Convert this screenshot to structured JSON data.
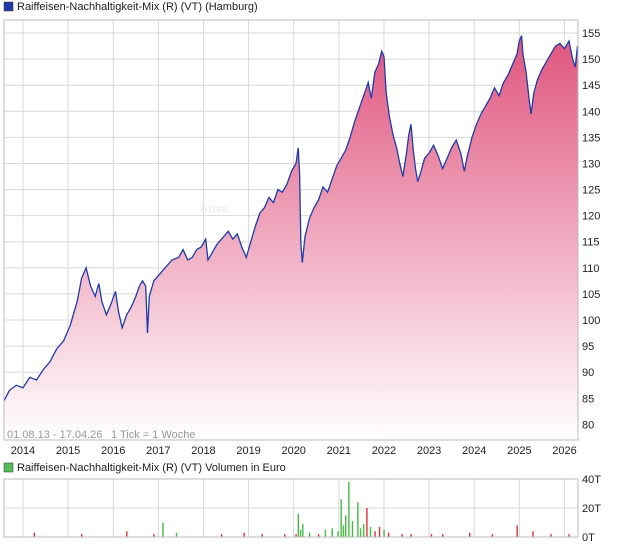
{
  "legend_main": {
    "label": "Raiffeisen-Nachhaltigkeit-Mix (R) (VT) (Hamburg)",
    "color": "#1f3aa8"
  },
  "legend_volume": {
    "label": "Raiffeisen-Nachhaltigkeit-Mix (R) (VT) Volumen in Euro",
    "color": "#55bb55"
  },
  "info": {
    "date_range": "01.08.13 - 17.04.26",
    "tick": "1 Tick = 1 Woche"
  },
  "watermark": "Ariva",
  "colors": {
    "line": "#1f3aa8",
    "fill_top": "#e0557f",
    "fill_bottom": "#ffffff",
    "vol_up": "#44bb44",
    "vol_down": "#dd3333",
    "grid": "#d8d8d8"
  },
  "chart_data": [
    {
      "type": "area",
      "y_ticks": [
        80,
        85,
        90,
        95,
        100,
        105,
        110,
        115,
        120,
        125,
        130,
        135,
        140,
        145,
        150,
        155
      ],
      "ylim": [
        77,
        157.5
      ],
      "x_ticks": [
        "2014",
        "2015",
        "2016",
        "2017",
        "2018",
        "2019",
        "2020",
        "2021",
        "2022",
        "2023",
        "2024",
        "2025",
        "2026"
      ],
      "xlim": [
        2013.58,
        2026.3
      ],
      "grid": true,
      "points": [
        [
          2013.58,
          84.5
        ],
        [
          2013.7,
          86.5
        ],
        [
          2013.85,
          87.5
        ],
        [
          2014.0,
          87.0
        ],
        [
          2014.15,
          89.0
        ],
        [
          2014.3,
          88.5
        ],
        [
          2014.45,
          90.5
        ],
        [
          2014.6,
          92.0
        ],
        [
          2014.75,
          94.5
        ],
        [
          2014.9,
          96.0
        ],
        [
          2015.05,
          99.0
        ],
        [
          2015.2,
          103.5
        ],
        [
          2015.3,
          108.0
        ],
        [
          2015.4,
          110.0
        ],
        [
          2015.5,
          106.5
        ],
        [
          2015.6,
          104.5
        ],
        [
          2015.68,
          107.0
        ],
        [
          2015.75,
          103.5
        ],
        [
          2015.85,
          101.0
        ],
        [
          2015.95,
          103.0
        ],
        [
          2016.05,
          105.5
        ],
        [
          2016.12,
          101.5
        ],
        [
          2016.2,
          98.5
        ],
        [
          2016.3,
          101.0
        ],
        [
          2016.4,
          102.5
        ],
        [
          2016.5,
          104.5
        ],
        [
          2016.58,
          106.5
        ],
        [
          2016.65,
          107.5
        ],
        [
          2016.72,
          106.5
        ],
        [
          2016.76,
          97.5
        ],
        [
          2016.8,
          104.5
        ],
        [
          2016.9,
          107.5
        ],
        [
          2017.0,
          108.5
        ],
        [
          2017.15,
          110.0
        ],
        [
          2017.3,
          111.5
        ],
        [
          2017.45,
          112.0
        ],
        [
          2017.55,
          113.5
        ],
        [
          2017.65,
          111.5
        ],
        [
          2017.75,
          112.0
        ],
        [
          2017.85,
          113.5
        ],
        [
          2017.95,
          114.0
        ],
        [
          2018.05,
          115.5
        ],
        [
          2018.1,
          111.5
        ],
        [
          2018.2,
          113.0
        ],
        [
          2018.3,
          114.5
        ],
        [
          2018.45,
          116.0
        ],
        [
          2018.55,
          117.0
        ],
        [
          2018.65,
          115.5
        ],
        [
          2018.75,
          116.5
        ],
        [
          2018.85,
          114.0
        ],
        [
          2018.95,
          112.0
        ],
        [
          2019.05,
          115.0
        ],
        [
          2019.15,
          118.0
        ],
        [
          2019.25,
          120.5
        ],
        [
          2019.35,
          121.5
        ],
        [
          2019.45,
          123.5
        ],
        [
          2019.55,
          122.5
        ],
        [
          2019.65,
          125.0
        ],
        [
          2019.75,
          124.5
        ],
        [
          2019.85,
          126.0
        ],
        [
          2019.95,
          128.5
        ],
        [
          2020.05,
          130.0
        ],
        [
          2020.1,
          133.0
        ],
        [
          2020.13,
          128.0
        ],
        [
          2020.16,
          114.5
        ],
        [
          2020.19,
          111.0
        ],
        [
          2020.25,
          116.0
        ],
        [
          2020.35,
          119.5
        ],
        [
          2020.45,
          121.5
        ],
        [
          2020.55,
          123.0
        ],
        [
          2020.65,
          125.5
        ],
        [
          2020.75,
          124.5
        ],
        [
          2020.85,
          127.0
        ],
        [
          2020.95,
          129.5
        ],
        [
          2021.05,
          131.0
        ],
        [
          2021.15,
          132.5
        ],
        [
          2021.25,
          135.0
        ],
        [
          2021.35,
          138.0
        ],
        [
          2021.45,
          140.5
        ],
        [
          2021.55,
          143.0
        ],
        [
          2021.65,
          145.5
        ],
        [
          2021.72,
          142.5
        ],
        [
          2021.8,
          147.5
        ],
        [
          2021.88,
          149.0
        ],
        [
          2021.95,
          151.5
        ],
        [
          2022.0,
          150.5
        ],
        [
          2022.05,
          143.5
        ],
        [
          2022.12,
          139.0
        ],
        [
          2022.2,
          135.5
        ],
        [
          2022.28,
          133.0
        ],
        [
          2022.35,
          130.0
        ],
        [
          2022.42,
          127.5
        ],
        [
          2022.5,
          132.0
        ],
        [
          2022.55,
          135.5
        ],
        [
          2022.6,
          137.5
        ],
        [
          2022.65,
          132.5
        ],
        [
          2022.7,
          129.0
        ],
        [
          2022.75,
          126.5
        ],
        [
          2022.82,
          128.5
        ],
        [
          2022.9,
          131.0
        ],
        [
          2023.0,
          132.0
        ],
        [
          2023.1,
          133.5
        ],
        [
          2023.2,
          131.5
        ],
        [
          2023.3,
          129.0
        ],
        [
          2023.4,
          131.0
        ],
        [
          2023.5,
          133.0
        ],
        [
          2023.6,
          134.5
        ],
        [
          2023.7,
          132.0
        ],
        [
          2023.78,
          128.5
        ],
        [
          2023.85,
          131.5
        ],
        [
          2023.95,
          135.0
        ],
        [
          2024.05,
          137.5
        ],
        [
          2024.15,
          139.5
        ],
        [
          2024.25,
          141.0
        ],
        [
          2024.35,
          142.5
        ],
        [
          2024.45,
          144.5
        ],
        [
          2024.55,
          143.0
        ],
        [
          2024.65,
          145.5
        ],
        [
          2024.75,
          147.0
        ],
        [
          2024.85,
          149.0
        ],
        [
          2024.95,
          151.0
        ],
        [
          2025.0,
          153.5
        ],
        [
          2025.05,
          154.5
        ],
        [
          2025.08,
          151.0
        ],
        [
          2025.15,
          147.5
        ],
        [
          2025.22,
          142.0
        ],
        [
          2025.26,
          139.5
        ],
        [
          2025.32,
          143.5
        ],
        [
          2025.4,
          146.0
        ],
        [
          2025.5,
          148.0
        ],
        [
          2025.6,
          149.5
        ],
        [
          2025.7,
          151.0
        ],
        [
          2025.8,
          152.5
        ],
        [
          2025.9,
          153.0
        ],
        [
          2026.0,
          152.0
        ],
        [
          2026.1,
          153.5
        ],
        [
          2026.18,
          150.0
        ],
        [
          2026.24,
          148.5
        ],
        [
          2026.29,
          152.5
        ]
      ]
    },
    {
      "type": "bar",
      "y_ticks": [
        "0T",
        "20T",
        "40T"
      ],
      "ylim": [
        0,
        40
      ],
      "xlim": [
        2013.58,
        2026.3
      ],
      "bars": [
        [
          2014.25,
          3,
          "down"
        ],
        [
          2015.3,
          2,
          "down"
        ],
        [
          2016.3,
          4,
          "down"
        ],
        [
          2016.9,
          2,
          "down"
        ],
        [
          2017.1,
          10,
          "up"
        ],
        [
          2017.4,
          3,
          "up"
        ],
        [
          2018.4,
          2,
          "down"
        ],
        [
          2018.9,
          3,
          "down"
        ],
        [
          2019.3,
          2,
          "down"
        ],
        [
          2019.8,
          2,
          "down"
        ],
        [
          2020.05,
          2,
          "down"
        ],
        [
          2020.1,
          16,
          "up"
        ],
        [
          2020.15,
          5,
          "up"
        ],
        [
          2020.2,
          9,
          "up"
        ],
        [
          2020.35,
          3,
          "up"
        ],
        [
          2020.55,
          2,
          "down"
        ],
        [
          2020.7,
          5,
          "up"
        ],
        [
          2020.85,
          6,
          "up"
        ],
        [
          2020.98,
          4,
          "up"
        ],
        [
          2021.05,
          26,
          "up"
        ],
        [
          2021.1,
          8,
          "up"
        ],
        [
          2021.15,
          15,
          "up"
        ],
        [
          2021.22,
          38,
          "up"
        ],
        [
          2021.3,
          11,
          "up"
        ],
        [
          2021.42,
          24,
          "up"
        ],
        [
          2021.48,
          6,
          "up"
        ],
        [
          2021.55,
          9,
          "up"
        ],
        [
          2021.62,
          20,
          "down"
        ],
        [
          2021.7,
          7,
          "up"
        ],
        [
          2021.8,
          4,
          "down"
        ],
        [
          2021.9,
          7,
          "down"
        ],
        [
          2022.0,
          5,
          "up"
        ],
        [
          2022.1,
          3,
          "down"
        ],
        [
          2022.4,
          2,
          "down"
        ],
        [
          2022.6,
          2,
          "down"
        ],
        [
          2023.05,
          2,
          "down"
        ],
        [
          2023.3,
          2,
          "down"
        ],
        [
          2023.9,
          3,
          "down"
        ],
        [
          2024.4,
          2,
          "down"
        ],
        [
          2024.95,
          8,
          "down"
        ],
        [
          2025.3,
          4,
          "down"
        ],
        [
          2025.7,
          2,
          "down"
        ],
        [
          2026.1,
          2,
          "down"
        ]
      ]
    }
  ]
}
